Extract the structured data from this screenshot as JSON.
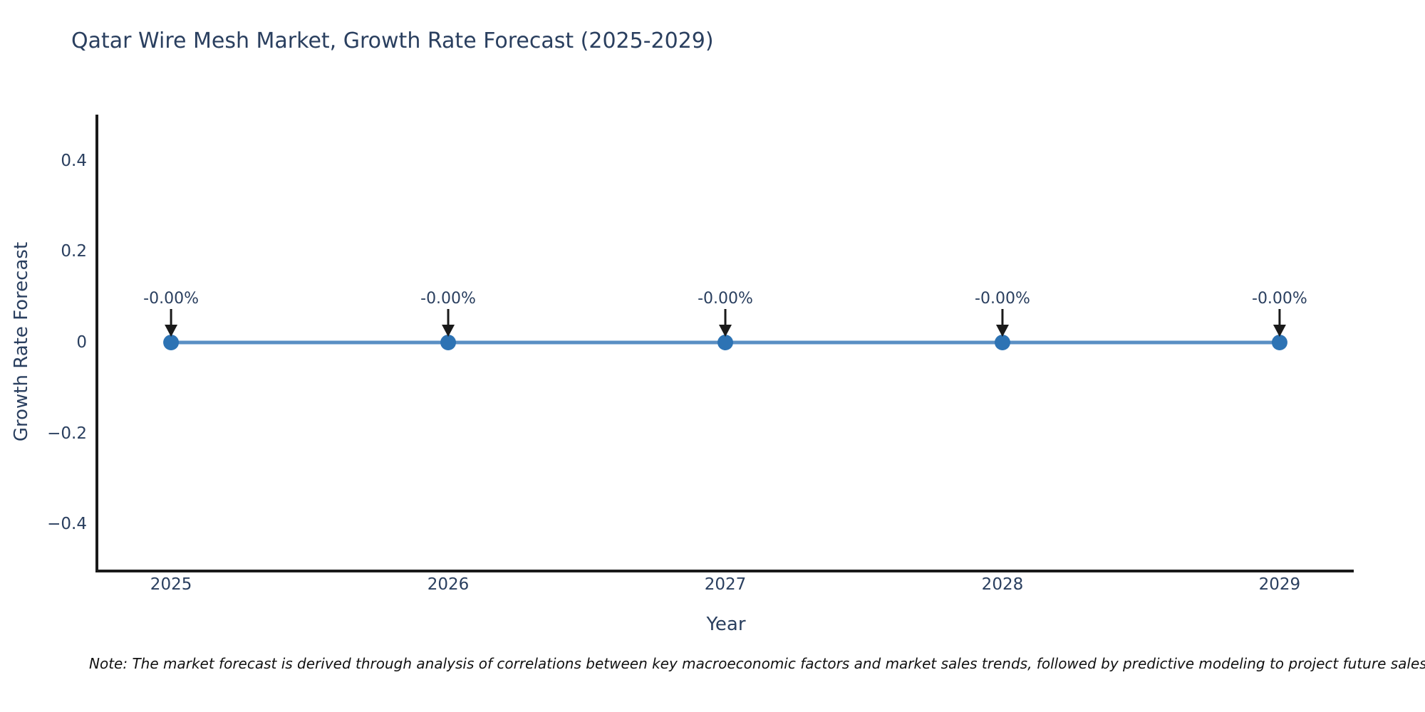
{
  "chart_data": {
    "type": "line",
    "title": "Qatar Wire Mesh Market, Growth Rate Forecast (2025-2029)",
    "xlabel": "Year",
    "ylabel": "Growth Rate Forecast",
    "categories": [
      "2025",
      "2026",
      "2027",
      "2028",
      "2029"
    ],
    "series": [
      {
        "name": "Growth Rate Forecast",
        "values": [
          0,
          0,
          0,
          0,
          0
        ]
      }
    ],
    "point_labels": [
      "-0.00%",
      "-0.00%",
      "-0.00%",
      "-0.00%",
      "-0.00%"
    ],
    "ylim": [
      -0.5,
      0.5
    ],
    "yticks": {
      "values": [
        0.4,
        0.2,
        0,
        -0.2,
        -0.4
      ],
      "labels": [
        "0.4",
        "0.2",
        "0",
        "−0.2",
        "−0.4"
      ]
    },
    "grid": false,
    "legend": false,
    "annotations_have_arrows": true,
    "colors": {
      "line": "#5a8fc4",
      "marker": "#2d73b4",
      "arrow": "#1a1a1a",
      "axis": "#1a1a1a",
      "text": "#2a3f5f",
      "note_text": "#111111",
      "background": "#ffffff"
    }
  },
  "note": {
    "text": "Note: The market forecast is derived through analysis of correlations between key macroeconomic factors and market sales trends, followed by predictive modeling to project future sales."
  }
}
